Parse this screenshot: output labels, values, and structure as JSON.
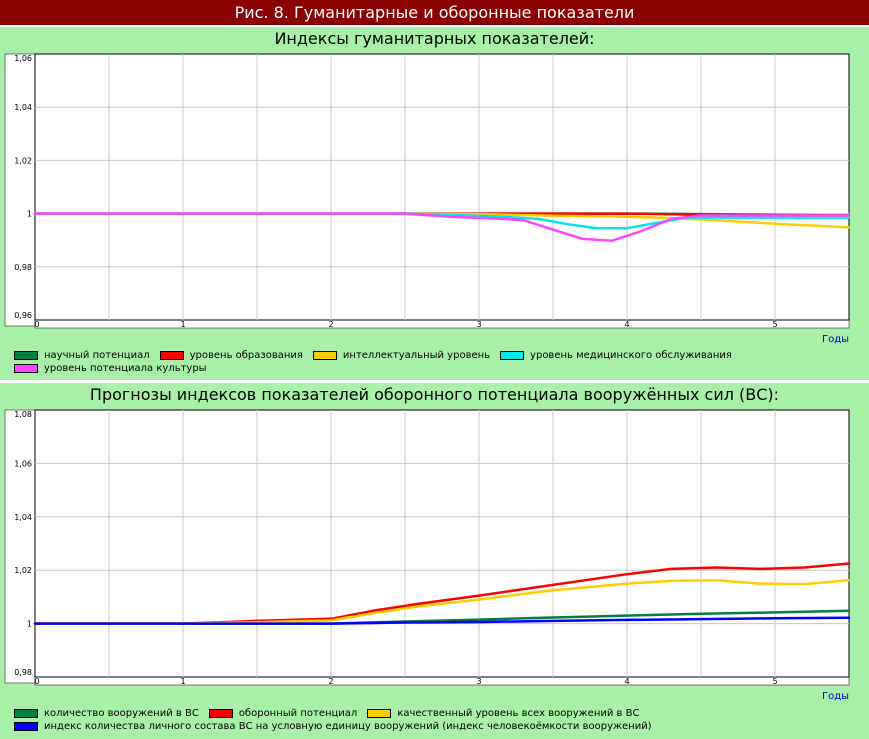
{
  "page_title": "Рис. 8.  Гуманитарные и оборонные показатели",
  "chart_data": [
    {
      "type": "line",
      "title": "Индексы гуманитарных показателей:",
      "xlabel": "Годы",
      "x_ticks": [
        "0",
        "1",
        "2",
        "3",
        "4",
        "5"
      ],
      "xlim": [
        0,
        5.5
      ],
      "y_ticks": [
        "0,96",
        "0,98",
        "1",
        "1,02",
        "1,04",
        "1,06"
      ],
      "ylim": [
        0.96,
        1.06
      ],
      "grid": true,
      "legend_position": "bottom",
      "legend_rows": [
        [
          0,
          1,
          2,
          3
        ],
        [
          4
        ]
      ],
      "series": [
        {
          "name": "научный потенциал",
          "color": "#008040",
          "x": [
            0,
            2.5,
            3,
            3.5,
            4,
            4.5,
            5,
            5.5
          ],
          "y": [
            1.0,
            1.0,
            1.0,
            1.0,
            1.0,
            0.9998,
            0.9995,
            0.9993
          ]
        },
        {
          "name": "уровень образования",
          "color": "#ff0000",
          "x": [
            0,
            2.5,
            3,
            3.5,
            4,
            4.3,
            4.6,
            5,
            5.5
          ],
          "y": [
            1.0,
            1.0,
            1.0,
            1.0,
            1.0,
            0.9998,
            0.9993,
            0.9993,
            0.9993
          ]
        },
        {
          "name": "интеллектуальный уровень",
          "color": "#ffcc00",
          "x": [
            0,
            2.5,
            3,
            3.5,
            4,
            4.3,
            4.6,
            5,
            5.5
          ],
          "y": [
            1.0,
            1.0,
            0.9998,
            0.9992,
            0.9988,
            0.9983,
            0.9975,
            0.9962,
            0.9948
          ]
        },
        {
          "name": "уровень медицинского обслуживания",
          "color": "#00e5ee",
          "x": [
            0,
            2.5,
            2.8,
            3.1,
            3.4,
            3.6,
            3.8,
            4.0,
            4.2,
            4.4,
            4.7,
            5,
            5.5
          ],
          "y": [
            1.0,
            1.0,
            0.9995,
            0.999,
            0.998,
            0.996,
            0.9945,
            0.9945,
            0.9965,
            0.9985,
            0.9985,
            0.9985,
            0.9985
          ]
        },
        {
          "name": "уровень потенциала культуры",
          "color": "#ff44ff",
          "x": [
            0,
            2.5,
            2.8,
            3.1,
            3.3,
            3.5,
            3.7,
            3.9,
            4.1,
            4.3,
            4.5,
            4.8,
            5.2,
            5.5
          ],
          "y": [
            1.0,
            1.0,
            0.9988,
            0.9982,
            0.9975,
            0.994,
            0.9905,
            0.9898,
            0.9935,
            0.998,
            0.9993,
            0.9993,
            0.9993,
            0.9993
          ]
        }
      ]
    },
    {
      "type": "line",
      "title": "Прогнозы индексов показателей оборонного потенциала вооружённых сил (ВС):",
      "xlabel": "Годы",
      "x_ticks": [
        "0",
        "1",
        "2",
        "3",
        "4",
        "5"
      ],
      "xlim": [
        0,
        5.5
      ],
      "y_ticks": [
        "0,98",
        "1",
        "1,02",
        "1,04",
        "1,06",
        "1,08"
      ],
      "ylim": [
        0.98,
        1.08
      ],
      "grid": true,
      "legend_position": "bottom",
      "legend_rows": [
        [
          0,
          1,
          2
        ],
        [
          3
        ]
      ],
      "series": [
        {
          "name": "количество вооружений в ВС",
          "color": "#008040",
          "x": [
            0,
            1,
            2,
            2.5,
            3,
            3.5,
            4,
            4.5,
            5,
            5.5
          ],
          "y": [
            1.0,
            1.0,
            1.0,
            1.0008,
            1.0015,
            1.0023,
            1.003,
            1.0037,
            1.0042,
            1.0048
          ]
        },
        {
          "name": "оборонный потенциал",
          "color": "#ff0000",
          "x": [
            0,
            1,
            1.5,
            2,
            2.3,
            2.6,
            3,
            3.5,
            4,
            4.3,
            4.6,
            4.9,
            5.2,
            5.5
          ],
          "y": [
            1.0,
            1.0,
            1.001,
            1.0018,
            1.005,
            1.0075,
            1.0105,
            1.0145,
            1.0185,
            1.0205,
            1.021,
            1.0205,
            1.021,
            1.0225
          ]
        },
        {
          "name": "качественный уровень всех вооружений в ВС",
          "color": "#ffcc00",
          "x": [
            0,
            1,
            1.5,
            2,
            2.3,
            2.6,
            3,
            3.5,
            4,
            4.3,
            4.6,
            4.9,
            5.2,
            5.5
          ],
          "y": [
            1.0,
            1.0,
            1.0005,
            1.0012,
            1.004,
            1.0065,
            1.009,
            1.0125,
            1.015,
            1.016,
            1.0162,
            1.015,
            1.0148,
            1.0162
          ]
        },
        {
          "name": "индекс количества личного состава ВС на условную единицу вооружений (индекс человекоёмкости вооружений)",
          "color": "#0000ff",
          "x": [
            0,
            2,
            2.5,
            3,
            3.5,
            4,
            4.5,
            5,
            5.5
          ],
          "y": [
            1.0,
            1.0,
            1.0004,
            1.0006,
            1.001,
            1.0014,
            1.0017,
            1.002,
            1.0022
          ]
        }
      ]
    }
  ]
}
